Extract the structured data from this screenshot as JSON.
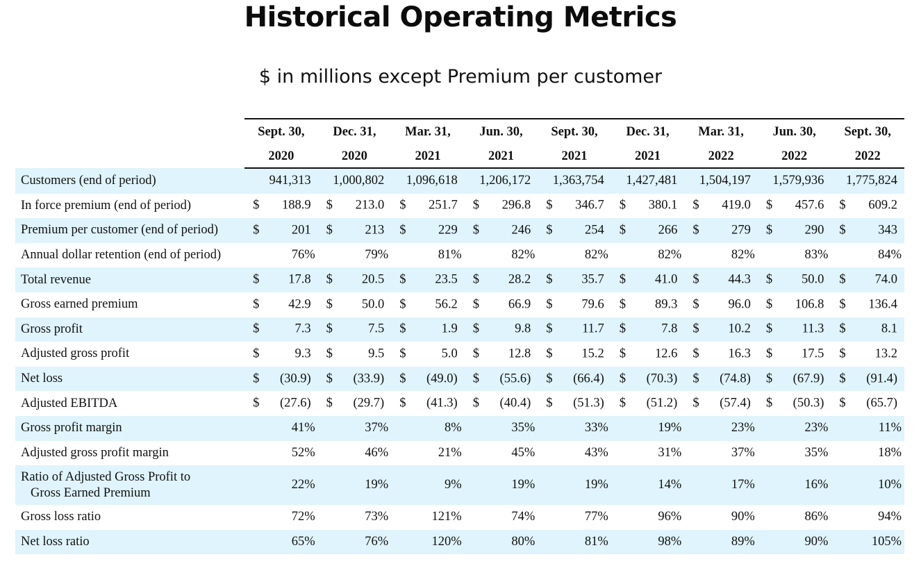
{
  "title": "Historical Operating Metrics",
  "subtitle": "$ in millions except Premium per customer",
  "periods": [
    {
      "month": "Sept. 30,",
      "year": "2020"
    },
    {
      "month": "Dec. 31,",
      "year": "2020"
    },
    {
      "month": "Mar. 31,",
      "year": "2021"
    },
    {
      "month": "Jun. 30,",
      "year": "2021"
    },
    {
      "month": "Sept. 30,",
      "year": "2021"
    },
    {
      "month": "Dec. 31,",
      "year": "2021"
    },
    {
      "month": "Mar. 31,",
      "year": "2022"
    },
    {
      "month": "Jun. 30,",
      "year": "2022"
    },
    {
      "month": "Sept. 30,",
      "year": "2022"
    }
  ],
  "rows": [
    {
      "label": "Customers (end of period)",
      "kind": "plain",
      "shaded": true,
      "values": [
        "941,313",
        "1,000,802",
        "1,096,618",
        "1,206,172",
        "1,363,754",
        "1,427,481",
        "1,504,197",
        "1,579,936",
        "1,775,824"
      ]
    },
    {
      "label": "In force premium (end of period)",
      "kind": "money",
      "shaded": false,
      "values": [
        "188.9",
        "213.0",
        "251.7",
        "296.8",
        "346.7",
        "380.1",
        "419.0",
        "457.6",
        "609.2"
      ]
    },
    {
      "label": "Premium per customer (end of period)",
      "kind": "money",
      "shaded": true,
      "values": [
        "201",
        "213",
        "229",
        "246",
        "254",
        "266",
        "279",
        "290",
        "343"
      ]
    },
    {
      "label": "Annual dollar retention (end of period)",
      "kind": "pct",
      "shaded": false,
      "values": [
        "76%",
        "79%",
        "81%",
        "82%",
        "82%",
        "82%",
        "82%",
        "83%",
        "84%"
      ]
    },
    {
      "label": "Total revenue",
      "kind": "money",
      "shaded": true,
      "values": [
        "17.8",
        "20.5",
        "23.5",
        "28.2",
        "35.7",
        "41.0",
        "44.3",
        "50.0",
        "74.0"
      ]
    },
    {
      "label": "Gross earned premium",
      "kind": "money",
      "shaded": false,
      "values": [
        "42.9",
        "50.0",
        "56.2",
        "66.9",
        "79.6",
        "89.3",
        "96.0",
        "106.8",
        "136.4"
      ]
    },
    {
      "label": "Gross profit",
      "kind": "money",
      "shaded": true,
      "values": [
        "7.3",
        "7.5",
        "1.9",
        "9.8",
        "11.7",
        "7.8",
        "10.2",
        "11.3",
        "8.1"
      ]
    },
    {
      "label": "Adjusted gross profit",
      "kind": "money",
      "shaded": false,
      "values": [
        "9.3",
        "9.5",
        "5.0",
        "12.8",
        "15.2",
        "12.6",
        "16.3",
        "17.5",
        "13.2"
      ]
    },
    {
      "label": "Net loss",
      "kind": "money",
      "shaded": true,
      "values": [
        "(30.9)",
        "(33.9)",
        "(49.0)",
        "(55.6)",
        "(66.4)",
        "(70.3)",
        "(74.8)",
        "(67.9)",
        "(91.4)"
      ]
    },
    {
      "label": "Adjusted EBITDA",
      "kind": "money",
      "shaded": false,
      "values": [
        "(27.6)",
        "(29.7)",
        "(41.3)",
        "(40.4)",
        "(51.3)",
        "(51.2)",
        "(57.4)",
        "(50.3)",
        "(65.7)"
      ]
    },
    {
      "label": "Gross profit margin",
      "kind": "pct",
      "shaded": true,
      "values": [
        "41%",
        "37%",
        "8%",
        "35%",
        "33%",
        "19%",
        "23%",
        "23%",
        "11%"
      ]
    },
    {
      "label": "Adjusted gross profit margin",
      "kind": "pct",
      "shaded": false,
      "values": [
        "52%",
        "46%",
        "21%",
        "45%",
        "43%",
        "31%",
        "37%",
        "35%",
        "18%"
      ]
    },
    {
      "label": "Ratio of Adjusted Gross Profit to",
      "label2": "Gross Earned Premium",
      "kind": "pct",
      "shaded": true,
      "values": [
        "22%",
        "19%",
        "9%",
        "19%",
        "19%",
        "14%",
        "17%",
        "16%",
        "10%"
      ]
    },
    {
      "label": "Gross loss ratio",
      "kind": "pct",
      "shaded": false,
      "values": [
        "72%",
        "73%",
        "121%",
        "74%",
        "77%",
        "96%",
        "90%",
        "86%",
        "94%"
      ]
    },
    {
      "label": "Net loss ratio",
      "kind": "pct",
      "shaded": true,
      "values": [
        "65%",
        "76%",
        "120%",
        "80%",
        "81%",
        "98%",
        "89%",
        "90%",
        "105%"
      ]
    }
  ],
  "currency_symbol": "$",
  "colors": {
    "row_shade": "#dff4fc",
    "text": "#111111"
  }
}
